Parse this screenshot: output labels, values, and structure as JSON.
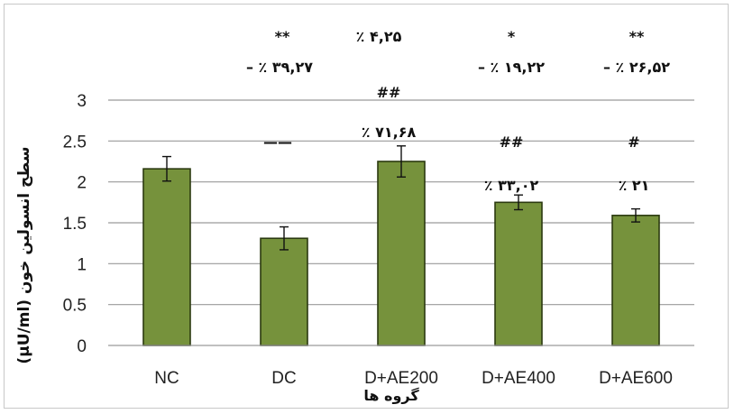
{
  "chart_data": {
    "type": "bar",
    "categories": [
      "NC",
      "DC",
      "D+AE200",
      "D+AE400",
      "D+AE600"
    ],
    "values": [
      2.16,
      1.31,
      2.25,
      1.75,
      1.59
    ],
    "errors": [
      0.15,
      0.14,
      0.19,
      0.09,
      0.08
    ],
    "ylabel": "سطح انسولین خون (μU/ml)",
    "xlabel": "گروه ها",
    "ylim": [
      0,
      3
    ],
    "yticks": [
      "0",
      "0.5",
      "1",
      "1.5",
      "2",
      "2.5",
      "3"
    ],
    "grid": true,
    "bar_color": "#76923c",
    "annotations": {
      "row1": [
        "**",
        "٪ ۴,۲۵",
        "*",
        "**"
      ],
      "row2": [
        "– ٪ ۳۹,۲۷",
        "– ٪ ۱۹,۲۲",
        "– ٪ ۲۶,۵۲"
      ],
      "above_bars": [
        "##",
        "٪ ۷۱,۶۸",
        "##",
        "٪ ۳۳,۰۲",
        "#",
        "٪ ۲۱"
      ],
      "dc_marker": "——"
    }
  }
}
